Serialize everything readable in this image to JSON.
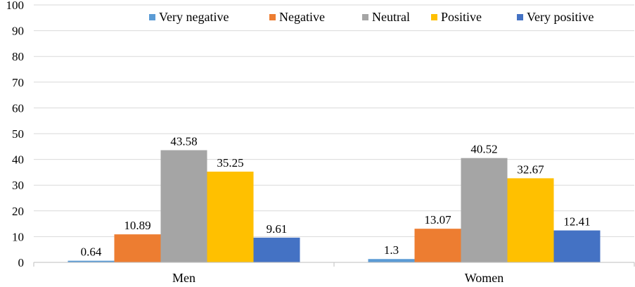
{
  "chart_data": {
    "type": "bar",
    "categories": [
      "Men",
      "Women"
    ],
    "series": [
      {
        "name": "Very negative",
        "color": "#5B9BD5",
        "values": [
          0.64,
          1.3
        ],
        "labels": [
          "0.64",
          "1.3"
        ]
      },
      {
        "name": "Negative",
        "color": "#ED7D31",
        "values": [
          10.89,
          13.07
        ],
        "labels": [
          "10.89",
          "13.07"
        ]
      },
      {
        "name": "Neutral",
        "color": "#A5A5A5",
        "values": [
          43.58,
          40.52
        ],
        "labels": [
          "43.58",
          "40.52"
        ]
      },
      {
        "name": "Positive",
        "color": "#FFC000",
        "values": [
          35.25,
          32.67
        ],
        "labels": [
          "35.25",
          "32.67"
        ]
      },
      {
        "name": "Very positive",
        "color": "#4472C4",
        "values": [
          9.61,
          12.41
        ],
        "labels": [
          "9.61",
          "12.41"
        ]
      }
    ],
    "ylim": [
      0,
      100
    ],
    "yticks": [
      "0",
      "10",
      "20",
      "30",
      "40",
      "50",
      "60",
      "70",
      "80",
      "90",
      "100"
    ],
    "grid": true,
    "legend_position": "top-right"
  }
}
